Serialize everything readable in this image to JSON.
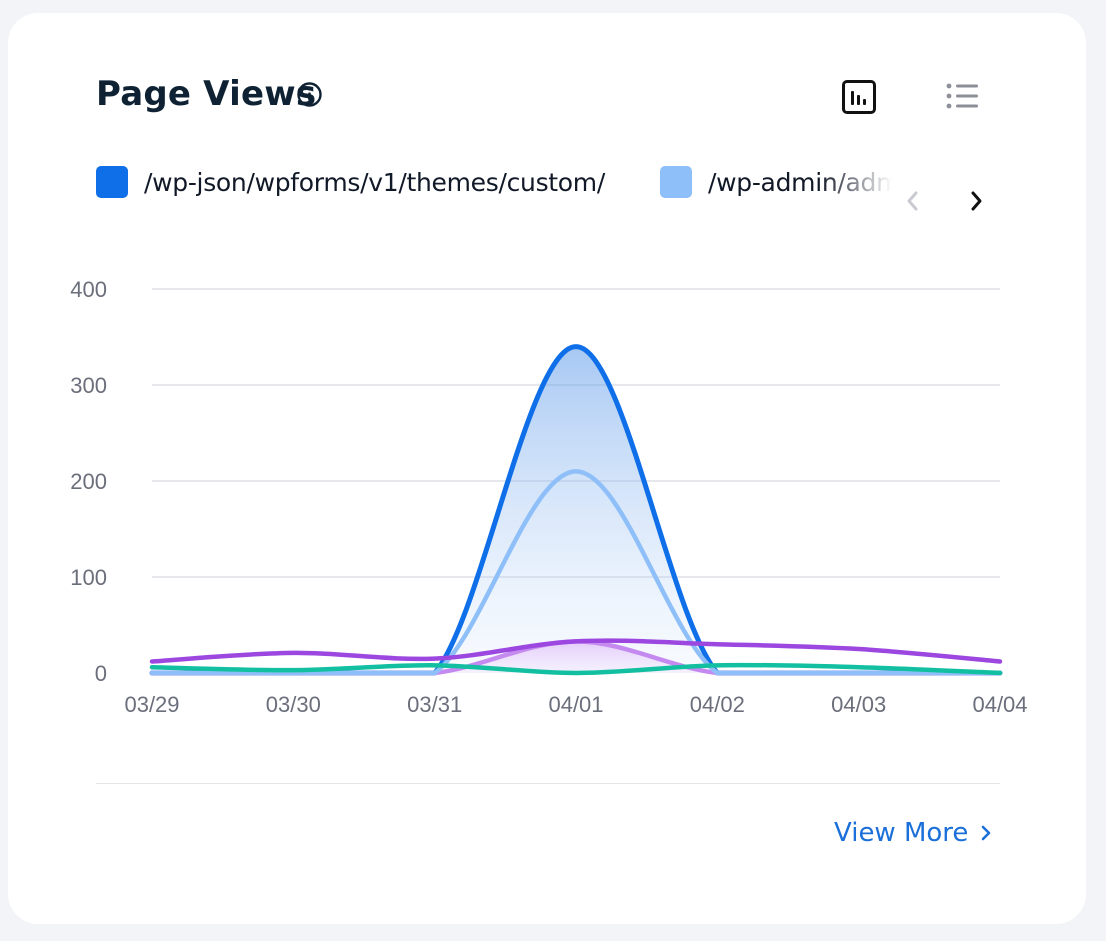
{
  "header": {
    "title": "Page Views",
    "icons": [
      "info-icon",
      "bar-chart-icon",
      "list-icon"
    ]
  },
  "legend": {
    "items": [
      {
        "label": "/wp-json/wpforms/v1/themes/custom/",
        "color": "#0f6fe8"
      },
      {
        "label": "/wp-admin/admin-ajax.php",
        "color": "#8fbff8"
      }
    ],
    "nav_icons": [
      "chevron-left-icon",
      "chevron-right-icon"
    ]
  },
  "colors": {
    "series_purple": "#9b47e0",
    "series_teal": "#12bfa0",
    "series_lilac": "#c58af0"
  },
  "chart_data": {
    "type": "line",
    "x": [
      "03/29",
      "03/30",
      "03/31",
      "04/01",
      "04/02",
      "04/03",
      "04/04"
    ],
    "ylim": [
      0,
      400
    ],
    "yticks": [
      "0",
      "100",
      "200",
      "300",
      "400"
    ],
    "grid": true,
    "series": [
      {
        "name": "/wp-json/wpforms/v1/themes/custom/",
        "color": "#0f6fe8",
        "fill": true,
        "values": [
          0,
          0,
          0,
          340,
          0,
          0,
          0
        ]
      },
      {
        "name": "/wp-admin/admin-ajax.php",
        "color": "#8fbff8",
        "values": [
          0,
          0,
          0,
          210,
          0,
          0,
          0
        ]
      },
      {
        "color": "#9b47e0",
        "values": [
          12,
          21,
          15,
          33,
          30,
          25,
          12
        ]
      },
      {
        "color": "#c58af0",
        "fill": true,
        "values": [
          0,
          0,
          0,
          33,
          0,
          0,
          0
        ]
      },
      {
        "color": "#12bfa0",
        "values": [
          6,
          3,
          8,
          0,
          8,
          6,
          0
        ]
      }
    ]
  },
  "footer": {
    "view_more_label": "View More"
  }
}
